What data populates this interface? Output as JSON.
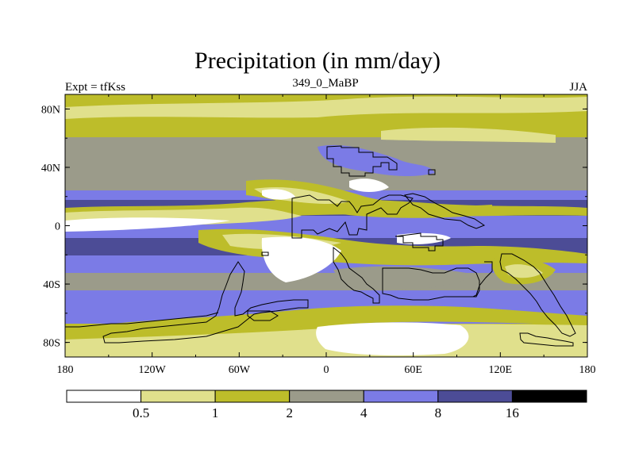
{
  "title": "Precipitation (in mm/day)",
  "subtitle_left": "Expt = tfKss",
  "subtitle_center": "349_0_MaBP",
  "subtitle_right": "JJA",
  "axes": {
    "x_ticks": [
      {
        "lon": -180,
        "label": "180"
      },
      {
        "lon": -120,
        "label": "120W"
      },
      {
        "lon": -60,
        "label": "60W"
      },
      {
        "lon": 0,
        "label": "0"
      },
      {
        "lon": 60,
        "label": "60E"
      },
      {
        "lon": 120,
        "label": "120E"
      },
      {
        "lon": 180,
        "label": "180"
      }
    ],
    "y_ticks": [
      {
        "lat": 80,
        "label": "80N"
      },
      {
        "lat": 40,
        "label": "40N"
      },
      {
        "lat": 0,
        "label": "0"
      },
      {
        "lat": -40,
        "label": "40S"
      },
      {
        "lat": -80,
        "label": "80S"
      }
    ],
    "lon_range": [
      -180,
      180
    ],
    "lat_range": [
      -90,
      90
    ]
  },
  "colorbar": {
    "levels": [
      "0.5",
      "1",
      "2",
      "4",
      "8",
      "16"
    ],
    "colors": [
      "#ffffff",
      "#e0e08c",
      "#bdbd2a",
      "#9b9b8a",
      "#7b7be6",
      "#4c4c96",
      "#000000"
    ]
  },
  "colors": {
    "white": "#ffffff",
    "light_yellow": "#e0e08c",
    "olive": "#bdbd2a",
    "gray": "#9b9b8a",
    "light_blue": "#7b7be6",
    "dark_blue": "#4c4c96"
  }
}
